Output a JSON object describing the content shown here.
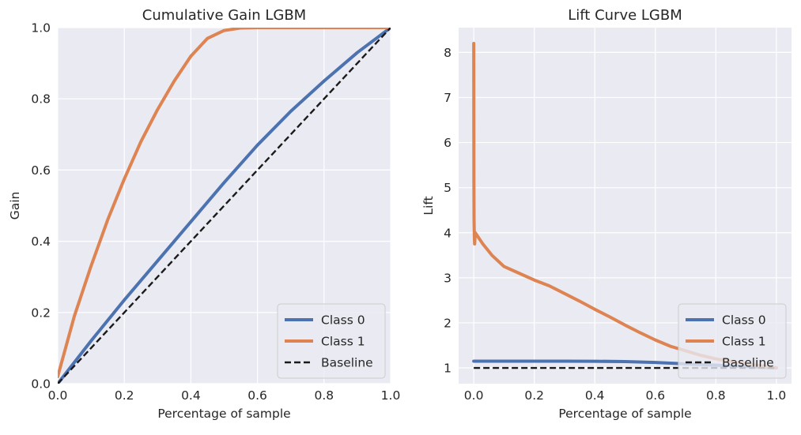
{
  "colors": {
    "background": "#eaeaf2",
    "grid": "#ffffff",
    "class0": "#4c72b0",
    "class1": "#dd8452",
    "baseline": "#1a1a1a",
    "text": "#262626"
  },
  "chart_data": [
    {
      "type": "line",
      "title": "Cumulative Gain LGBM",
      "xlabel": "Percentage of sample",
      "ylabel": "Gain",
      "xlim": [
        0.0,
        1.0
      ],
      "ylim": [
        0.0,
        1.0
      ],
      "xticks": [
        "0.0",
        "0.2",
        "0.4",
        "0.6",
        "0.8",
        "1.0"
      ],
      "yticks": [
        "0.0",
        "0.2",
        "0.4",
        "0.6",
        "0.8",
        "1.0"
      ],
      "grid": true,
      "legend_position": "lower-right",
      "series": [
        {
          "name": "Class 0",
          "color_key": "class0",
          "style": "solid",
          "x": [
            0,
            0.1,
            0.2,
            0.3,
            0.4,
            0.5,
            0.6,
            0.7,
            0.8,
            0.9,
            1.0
          ],
          "y": [
            0,
            0.12,
            0.235,
            0.345,
            0.455,
            0.565,
            0.67,
            0.765,
            0.85,
            0.93,
            1.0
          ]
        },
        {
          "name": "Class 1",
          "color_key": "class1",
          "style": "solid",
          "x": [
            0,
            0.05,
            0.1,
            0.15,
            0.2,
            0.25,
            0.3,
            0.35,
            0.4,
            0.45,
            0.5,
            0.55,
            0.6,
            0.7,
            0.8,
            1.0
          ],
          "y": [
            0.02,
            0.19,
            0.33,
            0.46,
            0.575,
            0.68,
            0.77,
            0.85,
            0.92,
            0.97,
            0.992,
            0.999,
            1.0,
            1.0,
            1.0,
            1.0
          ]
        },
        {
          "name": "Baseline",
          "color_key": "baseline",
          "style": "dashed",
          "x": [
            0,
            1
          ],
          "y": [
            0,
            1
          ]
        }
      ]
    },
    {
      "type": "line",
      "title": "Lift Curve LGBM",
      "xlabel": "Percentage of sample",
      "ylabel": "Lift",
      "xlim": [
        -0.05,
        1.05
      ],
      "ylim": [
        0.65,
        8.55
      ],
      "xticks": [
        "0.0",
        "0.2",
        "0.4",
        "0.6",
        "0.8",
        "1.0"
      ],
      "yticks": [
        "1",
        "2",
        "3",
        "4",
        "5",
        "6",
        "7",
        "8"
      ],
      "grid": true,
      "legend_position": "lower-right",
      "series": [
        {
          "name": "Class 0",
          "color_key": "class0",
          "style": "solid",
          "x": [
            0,
            0.1,
            0.2,
            0.3,
            0.4,
            0.5,
            0.6,
            0.7,
            0.8,
            0.9,
            1.0
          ],
          "y": [
            1.15,
            1.15,
            1.15,
            1.15,
            1.148,
            1.14,
            1.12,
            1.09,
            1.06,
            1.03,
            1.0
          ]
        },
        {
          "name": "Class 1",
          "color_key": "class1",
          "style": "solid",
          "x": [
            0,
            0.0005,
            0.001,
            0.002,
            0.003,
            0.005,
            0.01,
            0.03,
            0.06,
            0.1,
            0.15,
            0.2,
            0.25,
            0.3,
            0.35,
            0.4,
            0.45,
            0.5,
            0.55,
            0.6,
            0.65,
            0.7,
            0.75,
            0.8,
            0.9,
            1.0
          ],
          "y": [
            8.2,
            5.2,
            4.3,
            3.9,
            3.75,
            4.0,
            3.95,
            3.75,
            3.5,
            3.25,
            3.1,
            2.95,
            2.82,
            2.65,
            2.48,
            2.3,
            2.13,
            1.95,
            1.78,
            1.62,
            1.48,
            1.38,
            1.28,
            1.2,
            1.09,
            1.0
          ]
        },
        {
          "name": "Baseline",
          "color_key": "baseline",
          "style": "dashed",
          "x": [
            0,
            1
          ],
          "y": [
            1,
            1
          ]
        }
      ]
    }
  ]
}
